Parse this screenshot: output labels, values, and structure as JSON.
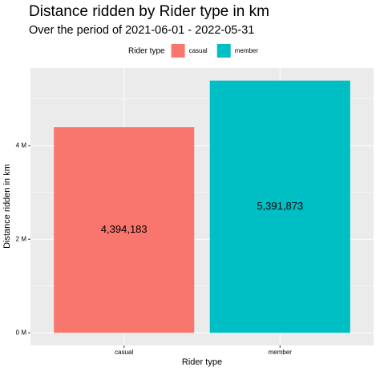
{
  "chart_data": {
    "type": "bar",
    "title": "Distance ridden by Rider type in km",
    "subtitle": "Over the period of 2021-06-01 - 2022-05-31",
    "x_label": "Rider type",
    "y_label": "Distance ridden in km",
    "legend_title": "Rider type",
    "legend_position": "top",
    "categories": [
      "casual",
      "member"
    ],
    "values": [
      4394183,
      5391873
    ],
    "value_labels": [
      "4,394,183",
      "5,391,873"
    ],
    "colors": [
      "#F8766D",
      "#00BFC4"
    ],
    "ylim": [
      -269594,
      5661467
    ],
    "yticks": [
      {
        "value": 0,
        "label": "0 M"
      },
      {
        "value": 2000000,
        "label": "2 M"
      },
      {
        "value": 4000000,
        "label": "4 M"
      }
    ],
    "minor_yticks": [
      1000000,
      3000000,
      5000000
    ],
    "grid": true
  }
}
